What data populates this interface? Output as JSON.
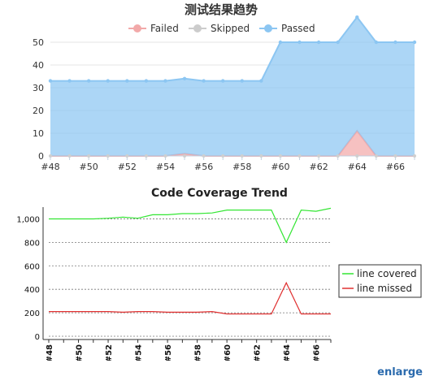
{
  "chart_data": [
    {
      "type": "area",
      "title": "测试结果趋势",
      "categories": [
        "#48",
        "#49",
        "#50",
        "#51",
        "#52",
        "#53",
        "#54",
        "#55",
        "#56",
        "#57",
        "#58",
        "#59",
        "#60",
        "#61",
        "#62",
        "#63",
        "#64",
        "#65",
        "#66",
        "#67"
      ],
      "x_tick_labels": [
        "#48",
        "#50",
        "#52",
        "#54",
        "#56",
        "#58",
        "#60",
        "#62",
        "#64",
        "#66"
      ],
      "ylim": [
        0,
        50
      ],
      "y_ticks": [
        0,
        10,
        20,
        30,
        40,
        50
      ],
      "legend_position": "top-center",
      "series": [
        {
          "name": "Failed",
          "color": "#f2a9a9",
          "values": [
            0,
            0,
            0,
            0,
            0,
            0,
            0,
            1,
            0,
            0,
            0,
            0,
            0,
            0,
            0,
            0,
            11,
            0,
            0,
            0
          ]
        },
        {
          "name": "Skipped",
          "color": "#cccccc",
          "values": [
            0,
            0,
            0,
            0,
            0,
            0,
            0,
            0,
            0,
            0,
            0,
            0,
            0,
            0,
            0,
            0,
            0,
            0,
            0,
            0
          ]
        },
        {
          "name": "Passed",
          "color": "#8cc6f2",
          "values": [
            33,
            33,
            33,
            33,
            33,
            33,
            33,
            33,
            33,
            33,
            33,
            33,
            50,
            50,
            50,
            50,
            50,
            50,
            50,
            50
          ]
        }
      ]
    },
    {
      "type": "line",
      "title": "Code Coverage Trend",
      "categories": [
        "#48",
        "#49",
        "#50",
        "#51",
        "#52",
        "#53",
        "#54",
        "#55",
        "#56",
        "#57",
        "#58",
        "#59",
        "#60",
        "#61",
        "#62",
        "#63",
        "#64",
        "#65",
        "#66",
        "#67"
      ],
      "x_tick_labels": [
        "#48",
        "#50",
        "#52",
        "#54",
        "#56",
        "#58",
        "#60",
        "#62",
        "#64",
        "#66"
      ],
      "ylim": [
        0,
        1100
      ],
      "y_ticks": [
        0,
        200,
        400,
        600,
        800,
        1000
      ],
      "y_tick_labels": [
        "0",
        "200",
        "400",
        "600",
        "800",
        "1,000"
      ],
      "grid": "dotted horizontal",
      "legend_position": "right",
      "series": [
        {
          "name": "line covered",
          "color": "#33e633",
          "values": [
            1000,
            1000,
            1000,
            1000,
            1005,
            1015,
            1005,
            1035,
            1035,
            1045,
            1045,
            1050,
            1075,
            1075,
            1075,
            1075,
            800,
            1075,
            1065,
            1090
          ]
        },
        {
          "name": "line missed",
          "color": "#e03030",
          "values": [
            210,
            210,
            210,
            210,
            210,
            205,
            210,
            210,
            205,
            205,
            205,
            210,
            190,
            190,
            190,
            190,
            455,
            190,
            190,
            190
          ]
        }
      ]
    }
  ],
  "footer": {
    "enlarge_label": "enlarge"
  }
}
